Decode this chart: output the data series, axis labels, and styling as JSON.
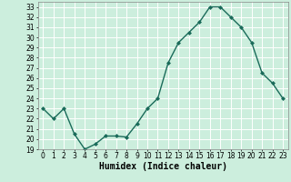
{
  "x": [
    0,
    1,
    2,
    3,
    4,
    5,
    6,
    7,
    8,
    9,
    10,
    11,
    12,
    13,
    14,
    15,
    16,
    17,
    18,
    19,
    20,
    21,
    22,
    23
  ],
  "y": [
    23,
    22,
    23,
    20.5,
    19,
    19.5,
    20.3,
    20.3,
    20.2,
    21.5,
    23,
    24,
    27.5,
    29.5,
    30.5,
    31.5,
    33,
    33,
    32,
    31,
    29.5,
    26.5,
    25.5,
    24
  ],
  "line_color": "#1a6b5a",
  "marker": "D",
  "marker_size": 2.0,
  "bg_color": "#cceedd",
  "grid_color": "#ffffff",
  "xlabel": "Humidex (Indice chaleur)",
  "ylim": [
    19,
    33.5
  ],
  "xlim": [
    -0.5,
    23.5
  ],
  "yticks": [
    19,
    20,
    21,
    22,
    23,
    24,
    25,
    26,
    27,
    28,
    29,
    30,
    31,
    32,
    33
  ],
  "xticks": [
    0,
    1,
    2,
    3,
    4,
    5,
    6,
    7,
    8,
    9,
    10,
    11,
    12,
    13,
    14,
    15,
    16,
    17,
    18,
    19,
    20,
    21,
    22,
    23
  ],
  "tick_fontsize": 5.5,
  "xlabel_fontsize": 7.0,
  "linewidth": 1.0
}
